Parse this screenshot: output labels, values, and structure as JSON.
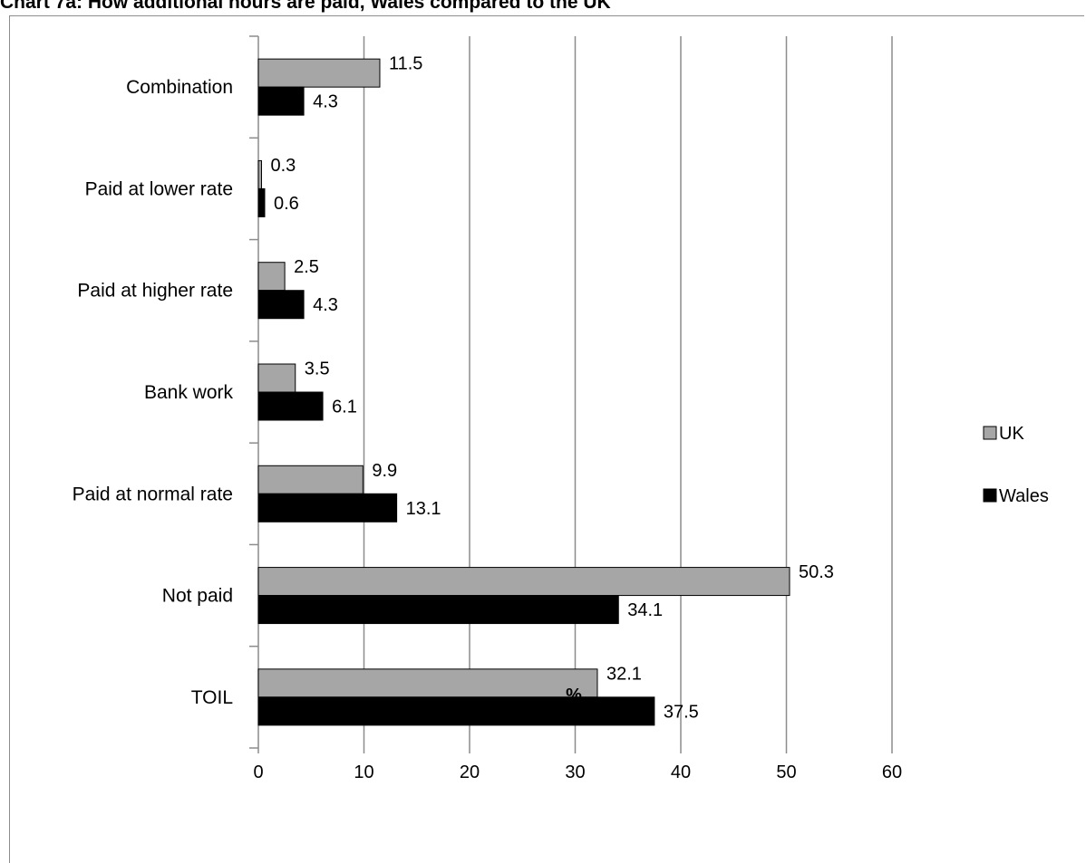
{
  "chart_data": {
    "type": "bar",
    "orientation": "horizontal",
    "title": "Chart 7a: How additional hours are paid, Wales compared to the UK",
    "xlabel": "%",
    "ylabel": "",
    "xlim": [
      0,
      60
    ],
    "ticks": [
      "0",
      "10",
      "20",
      "30",
      "40",
      "50",
      "60"
    ],
    "categories": [
      "Combination",
      "Paid at lower rate",
      "Paid at higher rate",
      "Bank work",
      "Paid at normal rate",
      "Not paid",
      "TOIL"
    ],
    "series": [
      {
        "name": "UK",
        "color": "#a6a6a6",
        "values": [
          11.5,
          0.3,
          2.5,
          3.5,
          9.9,
          50.3,
          32.1
        ]
      },
      {
        "name": "Wales",
        "color": "#000000",
        "values": [
          4.3,
          0.6,
          4.3,
          6.1,
          13.1,
          34.1,
          37.5
        ]
      }
    ],
    "grid": true,
    "legend": "right"
  }
}
